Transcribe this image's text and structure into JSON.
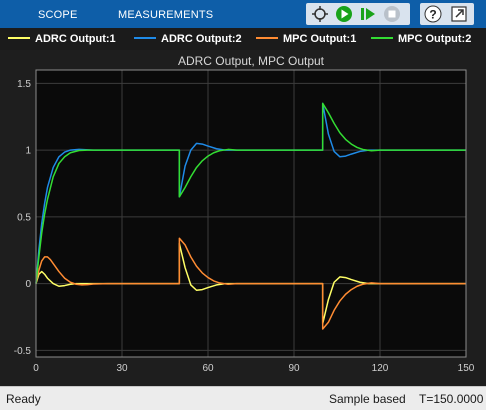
{
  "toolstrip": {
    "tabs": [
      {
        "label": "SCOPE"
      },
      {
        "label": "MEASUREMENTS"
      }
    ],
    "buttons": [
      {
        "icon": "signal-highlight-icon"
      },
      {
        "icon": "run-icon"
      },
      {
        "icon": "step-forward-icon"
      },
      {
        "icon": "stop-icon"
      },
      {
        "icon": "help-icon"
      },
      {
        "icon": "undock-icon"
      }
    ],
    "colors": {
      "background": "#0e5ea8",
      "run": "#19a319"
    }
  },
  "legend": {
    "items": [
      {
        "label": "ADRC Output:1",
        "color": "#ffff66"
      },
      {
        "label": "ADRC Output:2",
        "color": "#1f8be8"
      },
      {
        "label": "MPC Output:1",
        "color": "#ff8c33"
      },
      {
        "label": "MPC Output:2",
        "color": "#33dd33"
      }
    ]
  },
  "chart_data": {
    "type": "line",
    "title": "ADRC Output, MPC Output",
    "xlabel": "",
    "ylabel": "",
    "xlim": [
      0,
      150
    ],
    "ylim": [
      -0.55,
      1.6
    ],
    "xticks": [
      "0",
      "30",
      "60",
      "90",
      "120",
      "150"
    ],
    "yticks": [
      "-0.5",
      "0",
      "0.5",
      "1",
      "1.5"
    ],
    "grid": true,
    "legend_position": "top",
    "series": [
      {
        "name": "ADRC Output:1",
        "color": "#ffff66",
        "x": [
          0,
          1,
          2,
          3,
          4,
          6,
          8,
          10,
          12,
          14,
          20,
          30,
          40,
          50,
          50.01,
          52,
          54,
          56,
          58,
          60,
          63,
          66,
          70,
          80,
          90,
          100,
          100.01,
          102,
          104,
          106,
          108,
          110,
          113,
          116,
          120,
          130,
          140,
          150
        ],
        "y": [
          0,
          0.07,
          0.09,
          0.07,
          0.04,
          0.0,
          -0.02,
          -0.015,
          -0.005,
          0,
          0,
          0,
          0,
          0,
          0.3,
          0.12,
          -0.01,
          -0.05,
          -0.045,
          -0.03,
          -0.01,
          0,
          0,
          0,
          0,
          0,
          -0.3,
          -0.12,
          0.01,
          0.05,
          0.045,
          0.03,
          0.01,
          0,
          0,
          0,
          0,
          0
        ]
      },
      {
        "name": "ADRC Output:2",
        "color": "#1f8be8",
        "x": [
          0,
          1,
          2,
          3,
          4,
          6,
          8,
          10,
          12,
          15,
          20,
          30,
          40,
          50,
          50.01,
          52,
          54,
          56,
          58,
          60,
          63,
          66,
          70,
          80,
          90,
          100,
          100.01,
          102,
          104,
          106,
          108,
          110,
          113,
          116,
          120,
          130,
          140,
          150
        ],
        "y": [
          0,
          0.25,
          0.45,
          0.6,
          0.72,
          0.87,
          0.95,
          0.985,
          1.0,
          1.005,
          1.0,
          1.0,
          1.0,
          1.0,
          0.65,
          0.88,
          1.0,
          1.05,
          1.045,
          1.03,
          1.01,
          1.0,
          1.0,
          1.0,
          1.0,
          1.0,
          1.35,
          1.12,
          0.99,
          0.95,
          0.955,
          0.97,
          0.99,
          1.0,
          1.0,
          1.0,
          1.0,
          1.0
        ]
      },
      {
        "name": "MPC Output:1",
        "color": "#ff8c33",
        "x": [
          0,
          1,
          2,
          3,
          4,
          5,
          6,
          8,
          10,
          12,
          14,
          16,
          18,
          20,
          25,
          30,
          40,
          50,
          50.01,
          52,
          54,
          56,
          58,
          60,
          62,
          64,
          67,
          70,
          80,
          90,
          100,
          100.01,
          102,
          104,
          106,
          108,
          110,
          112,
          114,
          117,
          120,
          130,
          140,
          150
        ],
        "y": [
          0,
          0.1,
          0.17,
          0.2,
          0.2,
          0.18,
          0.15,
          0.09,
          0.04,
          0.01,
          -0.005,
          -0.01,
          -0.008,
          -0.003,
          0,
          0,
          0,
          0,
          0.34,
          0.29,
          0.2,
          0.13,
          0.08,
          0.045,
          0.02,
          0.005,
          -0.005,
          0,
          0,
          0,
          0,
          -0.34,
          -0.29,
          -0.2,
          -0.13,
          -0.08,
          -0.045,
          -0.02,
          -0.005,
          0.005,
          0,
          0,
          0,
          0
        ]
      },
      {
        "name": "MPC Output:2",
        "color": "#33dd33",
        "x": [
          0,
          1,
          2,
          3,
          4,
          6,
          8,
          10,
          12,
          15,
          18,
          20,
          30,
          40,
          50,
          50.01,
          52,
          54,
          56,
          58,
          60,
          62,
          64,
          67,
          70,
          80,
          90,
          100,
          100.01,
          102,
          104,
          106,
          108,
          110,
          112,
          114,
          117,
          120,
          130,
          140,
          150
        ],
        "y": [
          0,
          0.2,
          0.38,
          0.52,
          0.63,
          0.8,
          0.9,
          0.95,
          0.98,
          0.997,
          1.0,
          1.0,
          1.0,
          1.0,
          1.0,
          0.65,
          0.72,
          0.8,
          0.87,
          0.92,
          0.955,
          0.98,
          0.995,
          1.005,
          1.0,
          1.0,
          1.0,
          1.0,
          1.35,
          1.28,
          1.2,
          1.13,
          1.08,
          1.045,
          1.02,
          1.005,
          0.995,
          1.0,
          1.0,
          1.0,
          1.0
        ]
      }
    ]
  },
  "statusbar": {
    "left": "Ready",
    "mode": "Sample based",
    "time": "T=150.0000"
  }
}
